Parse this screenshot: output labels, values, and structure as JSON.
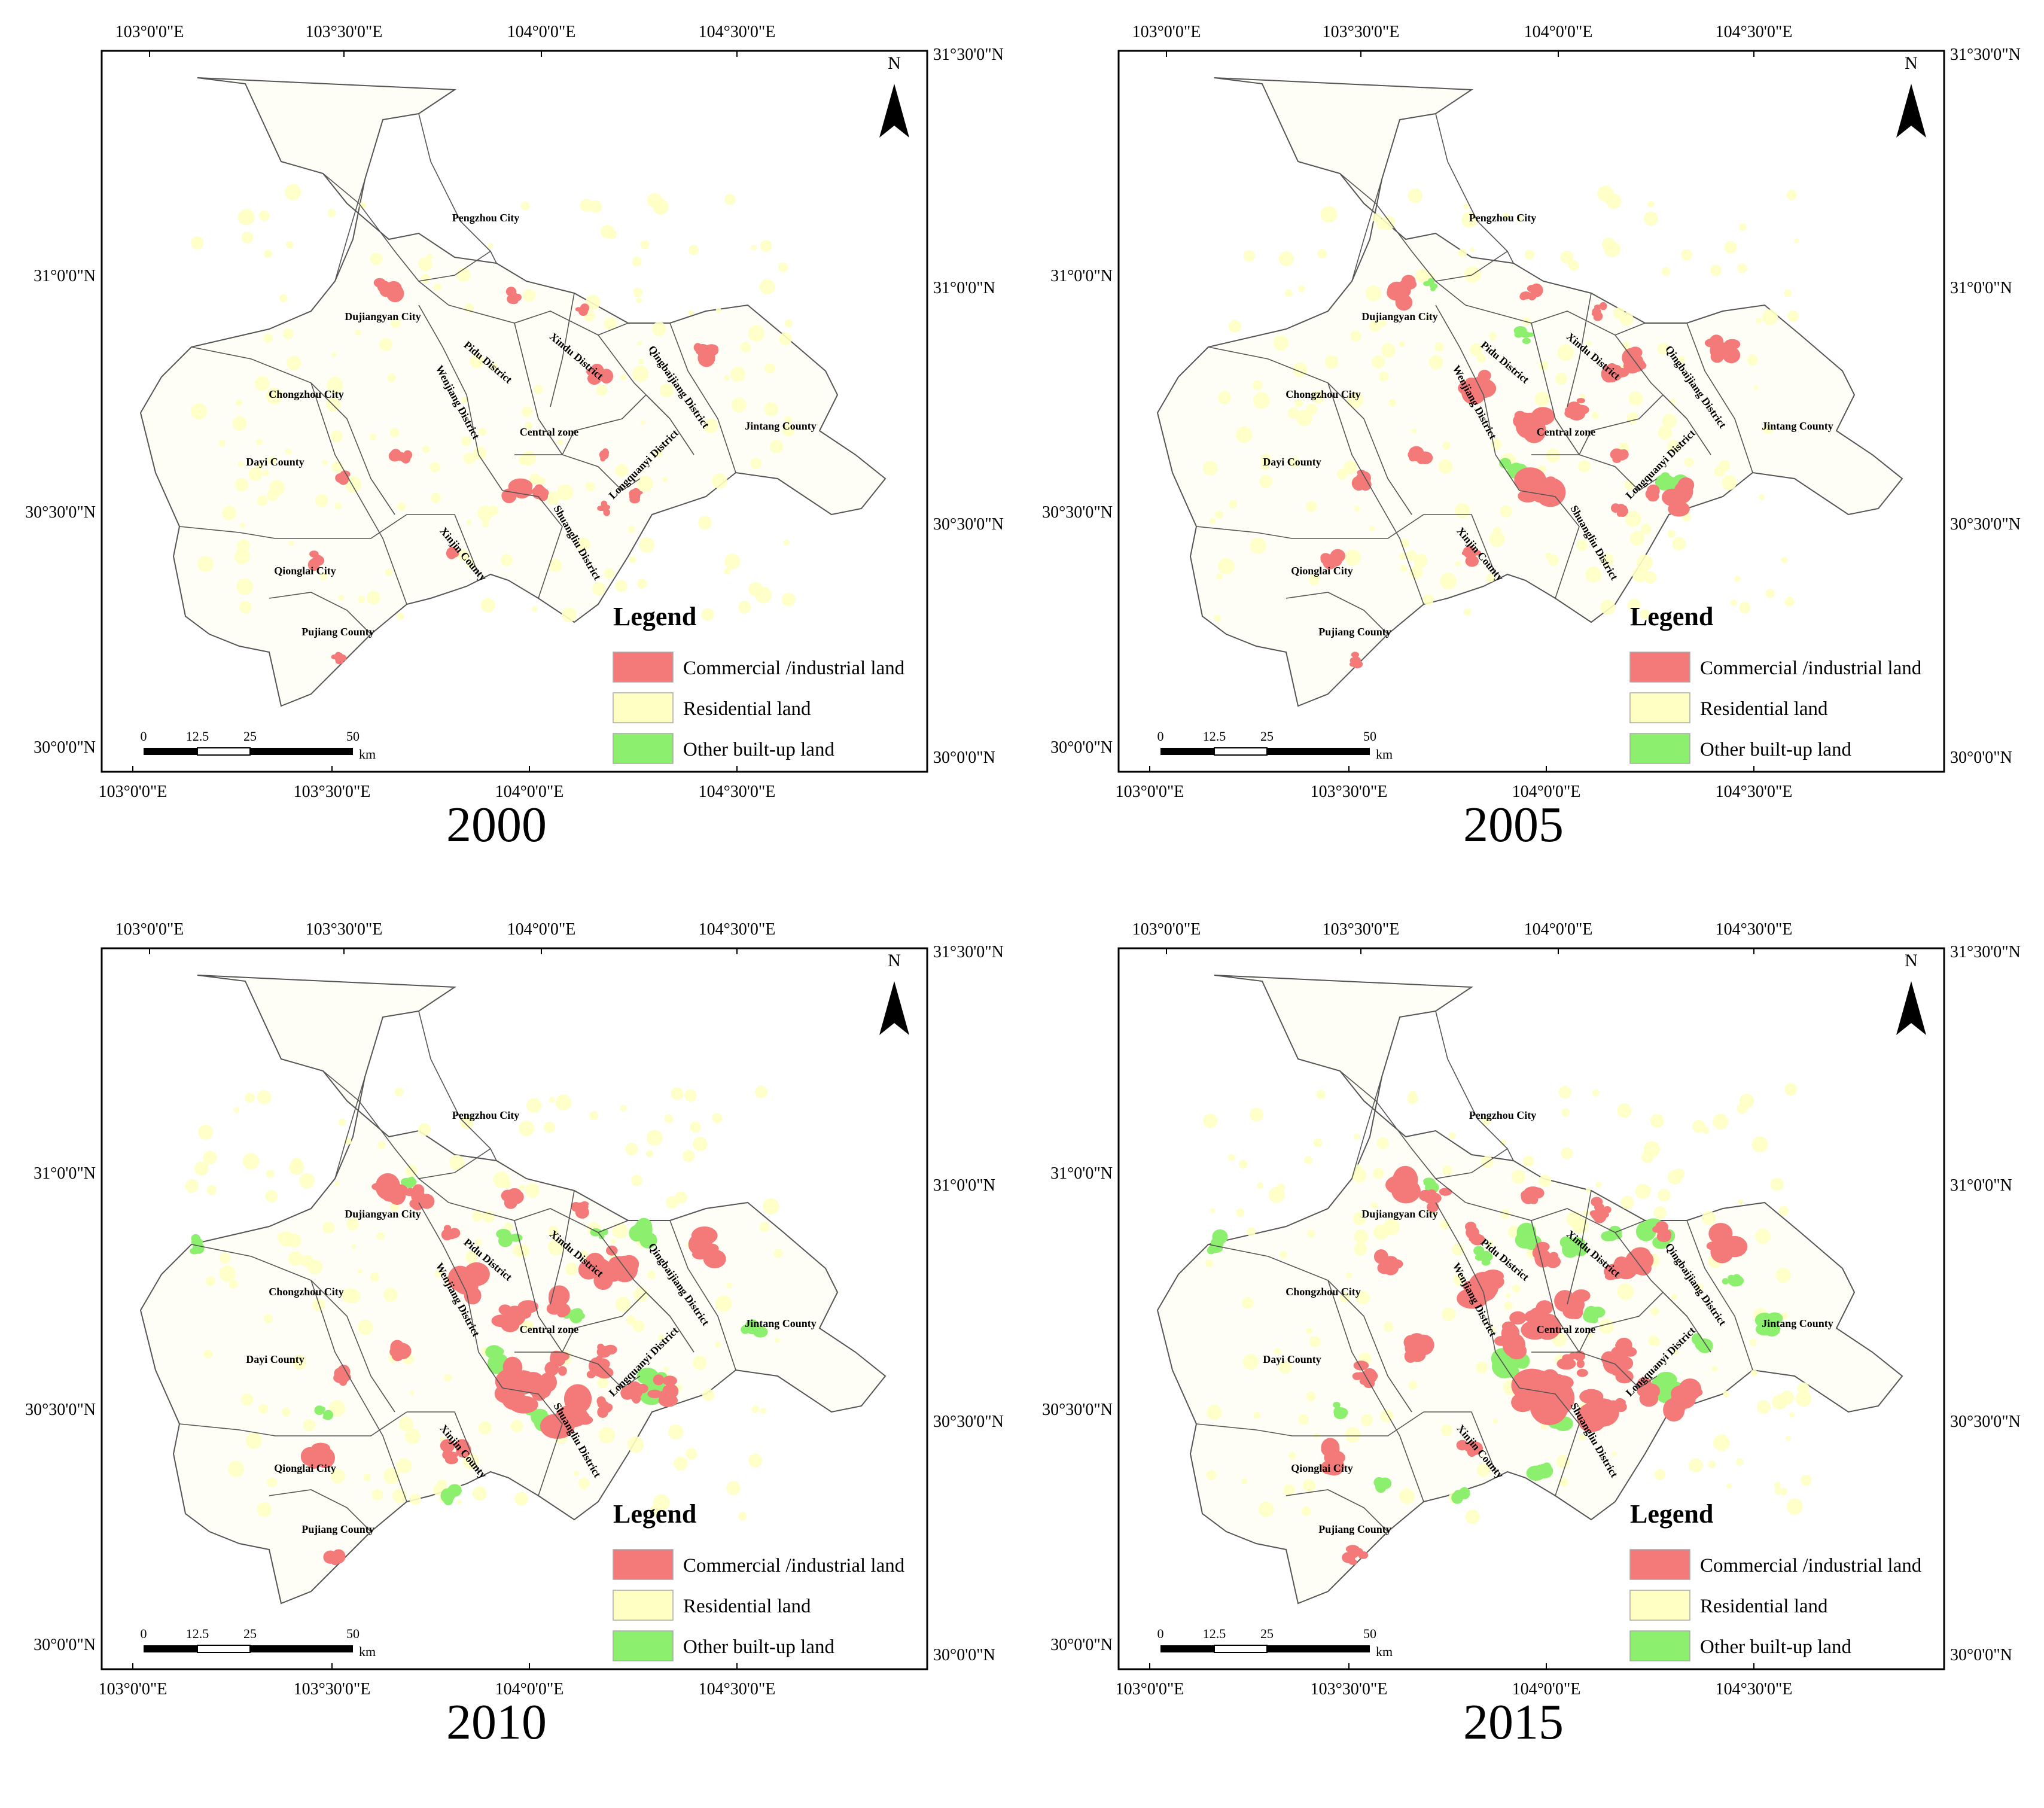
{
  "coords": {
    "top_lon": [
      "103°0'0\"E",
      "103°30'0\"E",
      "104°0'0\"E",
      "104°30'0\"E"
    ],
    "bottom_lon": [
      "103°0'0\"E",
      "103°30'0\"E",
      "104°0'0\"E",
      "104°30'0\"E"
    ],
    "left_lat": [
      "31°0'0\"N",
      "30°30'0\"N",
      "30°0'0\"N"
    ],
    "right_lat": [
      "31°30'0\"N",
      "31°0'0\"N",
      "30°30'0\"N",
      "30°0'0\"N"
    ]
  },
  "north": "N",
  "legend": {
    "title": "Legend",
    "items": [
      {
        "label": "Commercial /industrial land",
        "color": "#f47a7a"
      },
      {
        "label": "Residential land",
        "color": "#ffffc4"
      },
      {
        "label": "Other built-up land",
        "color": "#8cef6e"
      }
    ]
  },
  "scale": {
    "ticks": [
      "0",
      "12.5",
      "25",
      "50"
    ],
    "unit": "km"
  },
  "districts": [
    "Pengzhou City",
    "Dujiangyan City",
    "Pidu District",
    "Xindu District",
    "Qingbaijiang District",
    "Chongzhou City",
    "Wenjiang District",
    "Central zone",
    "Jintang County",
    "Dayi County",
    "Longquanyi District",
    "Shuangliu District",
    "Xinjin County",
    "Qionglai City",
    "Pujiang County"
  ],
  "panels": [
    {
      "year": "2000",
      "red_level": 1,
      "green_level": 0
    },
    {
      "year": "2005",
      "red_level": 2,
      "green_level": 1
    },
    {
      "year": "2010",
      "red_level": 3,
      "green_level": 2
    },
    {
      "year": "2015",
      "red_level": 4,
      "green_level": 3
    }
  ]
}
